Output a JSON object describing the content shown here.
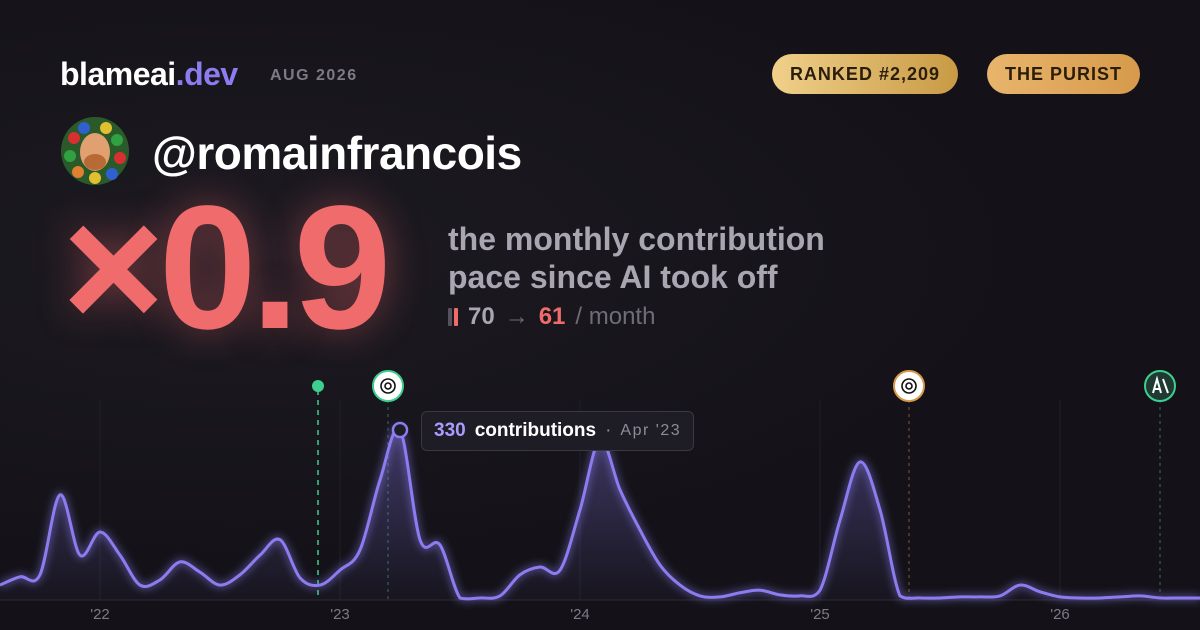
{
  "header": {
    "brand": "blameai",
    "brand_tld": ".dev",
    "date": "AUG 2026",
    "badges": [
      "RANKED #2,209",
      "THE PURIST"
    ],
    "handle": "@romainfrancois"
  },
  "hero": {
    "multiplier": "×0.9",
    "description": [
      "the monthly contribution",
      "pace since AI took off"
    ],
    "before": "70",
    "after": "61",
    "unit": "/ month"
  },
  "chart_data": {
    "type": "area",
    "categories": [
      null,
      null,
      null,
      null,
      null,
      "'22",
      null,
      null,
      null,
      null,
      null,
      null,
      null,
      null,
      null,
      null,
      null,
      "'23",
      null,
      null,
      null,
      null,
      null,
      null,
      null,
      null,
      null,
      null,
      null,
      "'24",
      null,
      null,
      null,
      null,
      null,
      null,
      null,
      null,
      null,
      null,
      null,
      "'25",
      null,
      null,
      null,
      null,
      null,
      null,
      null,
      null,
      null,
      null,
      null,
      "'26",
      null,
      null,
      null,
      null,
      null,
      null,
      null
    ],
    "values": [
      29,
      45,
      49,
      204,
      87,
      132,
      87,
      29,
      39,
      74,
      54,
      29,
      49,
      87,
      117,
      43,
      29,
      58,
      97,
      233,
      330,
      117,
      107,
      4,
      4,
      8,
      49,
      64,
      58,
      175,
      311,
      214,
      136,
      68,
      29,
      8,
      6,
      14,
      19,
      10,
      8,
      19,
      155,
      268,
      175,
      8,
      4,
      4,
      6,
      6,
      8,
      29,
      16,
      6,
      4,
      4,
      6,
      8,
      4,
      4,
      4
    ],
    "color": "#8b7cf0",
    "ylim": [
      0,
      330
    ],
    "tooltip": {
      "label": "contributions",
      "date": "Apr '23"
    }
  }
}
